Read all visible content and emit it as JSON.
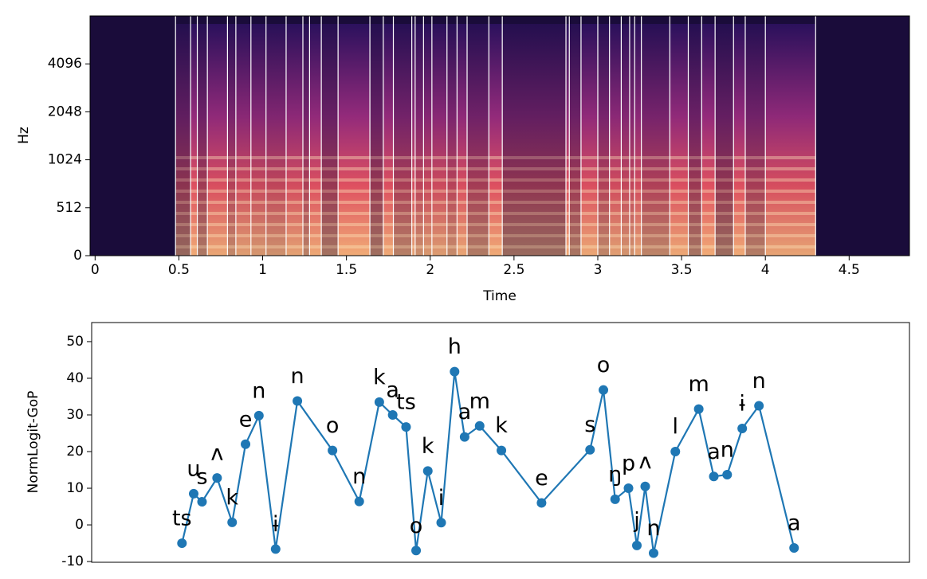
{
  "chart_data": [
    {
      "type": "spectrogram",
      "xlabel": "Time",
      "ylabel": "Hz",
      "xlim": [
        -0.03,
        4.86
      ],
      "xticks": [
        0,
        0.5,
        1,
        1.5,
        2,
        2.5,
        3,
        3.5,
        4,
        4.5
      ],
      "ylim": [
        0,
        8192
      ],
      "yticks": [
        0,
        512,
        1024,
        2048,
        4096
      ],
      "yscale": "symlog",
      "ybase": 2,
      "linthresh": 512,
      "boundaries": [
        0.48,
        0.57,
        0.61,
        0.67,
        0.79,
        0.84,
        0.93,
        1.02,
        1.14,
        1.24,
        1.28,
        1.35,
        1.45,
        1.64,
        1.72,
        1.78,
        1.89,
        1.91,
        1.96,
        2.01,
        2.1,
        2.16,
        2.22,
        2.35,
        2.43,
        2.81,
        2.83,
        2.9,
        3.0,
        3.07,
        3.14,
        3.19,
        3.22,
        3.26,
        3.43,
        3.54,
        3.62,
        3.7,
        3.81,
        3.88,
        4.0,
        4.3
      ],
      "boundary_color": "#ffffff"
    },
    {
      "type": "line",
      "ylabel": "NormLogit-GoP",
      "color": "#1f77b4",
      "xlim": [
        -0.03,
        4.86
      ],
      "ylim": [
        -10.2,
        55.2
      ],
      "yticks": [
        -10,
        0,
        10,
        20,
        30,
        40,
        50
      ],
      "labels": [
        "ts",
        "u",
        "s",
        "ʌ",
        "k",
        "e",
        "n",
        "ɨ",
        "n",
        "o",
        "n",
        "k",
        "a",
        "ts",
        "o",
        "k",
        "i",
        "h",
        "a",
        "m",
        "k",
        "e",
        "s",
        "o",
        "ŋ",
        "p",
        "j",
        "ʌ",
        "n",
        "l",
        "m",
        "a",
        "n",
        "ɨ",
        "n",
        "a"
      ],
      "x": [
        0.51,
        0.58,
        0.63,
        0.72,
        0.81,
        0.89,
        0.97,
        1.07,
        1.2,
        1.41,
        1.57,
        1.69,
        1.77,
        1.85,
        1.91,
        1.98,
        2.06,
        2.14,
        2.2,
        2.29,
        2.42,
        2.66,
        2.95,
        3.03,
        3.1,
        3.18,
        3.23,
        3.28,
        3.33,
        3.46,
        3.6,
        3.69,
        3.77,
        3.86,
        3.96,
        4.17
      ],
      "values": [
        -5,
        8.5,
        6.3,
        12.8,
        0.7,
        22,
        29.8,
        -6.6,
        33.8,
        20.3,
        6.4,
        33.5,
        30,
        26.7,
        -7,
        14.7,
        0.6,
        41.8,
        24,
        27,
        20.3,
        6,
        20.5,
        36.8,
        7,
        10,
        -5.6,
        10.5,
        -7.7,
        20,
        31.6,
        13.2,
        13.7,
        26.3,
        32.5,
        -6.3
      ]
    }
  ]
}
